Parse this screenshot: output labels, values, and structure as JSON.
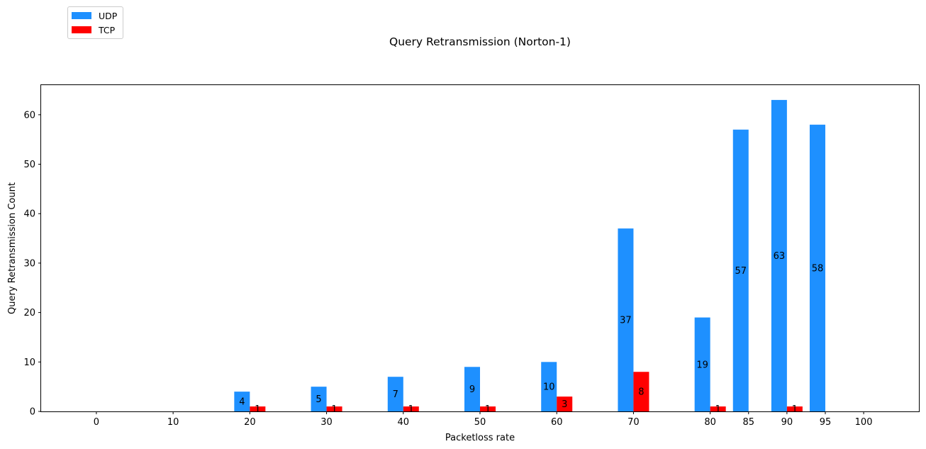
{
  "chart_data": {
    "type": "bar",
    "title": "Query Retransmission (Norton-1)",
    "xlabel": "Packetloss rate",
    "ylabel": "Query Retransmission Count",
    "x_ticks": [
      0,
      10,
      20,
      30,
      40,
      50,
      60,
      70,
      80,
      85,
      90,
      95,
      100
    ],
    "xlim": [
      -7.2,
      107.2
    ],
    "ylim": [
      0,
      66
    ],
    "y_ticks": [
      0,
      10,
      20,
      30,
      40,
      50,
      60
    ],
    "grid": false,
    "legend_position": "top-left",
    "series": [
      {
        "name": "UDP",
        "color": "#1e90ff",
        "points": [
          {
            "x": 20,
            "value": 4
          },
          {
            "x": 30,
            "value": 5
          },
          {
            "x": 40,
            "value": 7
          },
          {
            "x": 50,
            "value": 9
          },
          {
            "x": 60,
            "value": 10
          },
          {
            "x": 70,
            "value": 37
          },
          {
            "x": 80,
            "value": 19
          },
          {
            "x": 85,
            "value": 57
          },
          {
            "x": 90,
            "value": 63
          },
          {
            "x": 95,
            "value": 58
          }
        ]
      },
      {
        "name": "TCP",
        "color": "#ff0000",
        "points": [
          {
            "x": 20,
            "value": 1
          },
          {
            "x": 30,
            "value": 1
          },
          {
            "x": 40,
            "value": 1
          },
          {
            "x": 50,
            "value": 1
          },
          {
            "x": 60,
            "value": 3
          },
          {
            "x": 70,
            "value": 8
          },
          {
            "x": 80,
            "value": 1
          },
          {
            "x": 90,
            "value": 1
          }
        ]
      }
    ]
  }
}
